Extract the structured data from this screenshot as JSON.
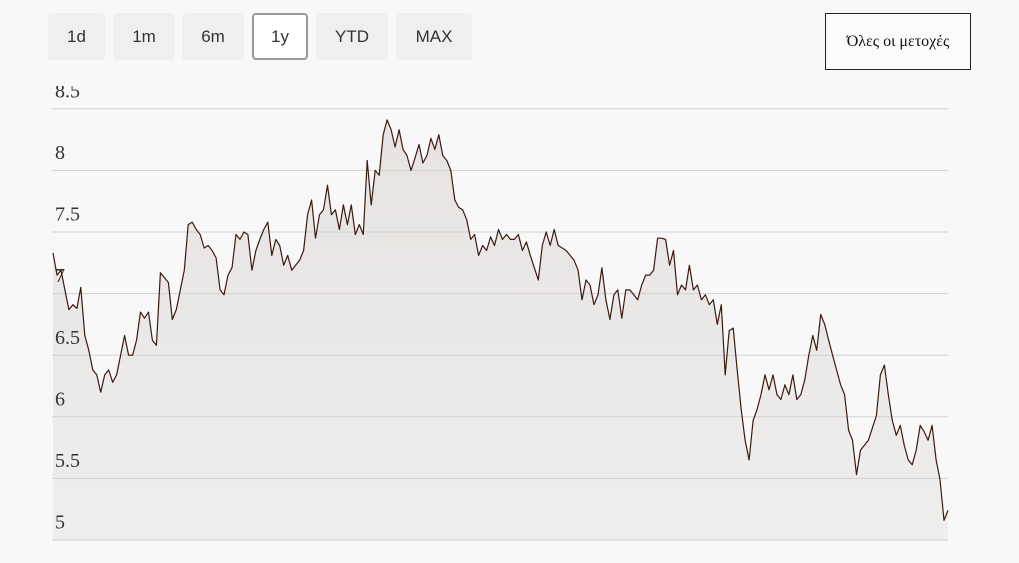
{
  "range_buttons": [
    "1d",
    "1m",
    "6m",
    "1y",
    "YTD",
    "MAX"
  ],
  "selected_range": 3,
  "all_stocks_button": "Όλες οι μετοχές",
  "chart_data": {
    "type": "line",
    "color": "#3b1a0f",
    "grid": true,
    "ylim": [
      5,
      8.685
    ],
    "yticks": [
      5,
      5.5,
      6,
      6.5,
      7,
      7.5,
      8,
      8.5
    ],
    "values": [
      7.33,
      7.15,
      7.19,
      7.03,
      6.87,
      6.91,
      6.88,
      7.05,
      6.66,
      6.54,
      6.38,
      6.34,
      6.2,
      6.34,
      6.38,
      6.28,
      6.34,
      6.5,
      6.66,
      6.5,
      6.5,
      6.62,
      6.85,
      6.8,
      6.85,
      6.62,
      6.58,
      7.17,
      7.13,
      7.09,
      6.79,
      6.87,
      7.03,
      7.19,
      7.56,
      7.58,
      7.52,
      7.48,
      7.37,
      7.39,
      7.35,
      7.29,
      7.03,
      6.99,
      7.15,
      7.21,
      7.48,
      7.44,
      7.5,
      7.48,
      7.19,
      7.35,
      7.44,
      7.52,
      7.58,
      7.31,
      7.44,
      7.39,
      7.23,
      7.31,
      7.19,
      7.23,
      7.27,
      7.35,
      7.64,
      7.76,
      7.45,
      7.64,
      7.68,
      7.88,
      7.64,
      7.68,
      7.52,
      7.72,
      7.56,
      7.72,
      7.48,
      7.56,
      7.48,
      8.08,
      7.72,
      8.0,
      7.96,
      8.29,
      8.41,
      8.33,
      8.19,
      8.33,
      8.17,
      8.12,
      8.0,
      8.1,
      8.21,
      8.06,
      8.12,
      8.26,
      8.17,
      8.29,
      8.12,
      8.08,
      8.0,
      7.76,
      7.7,
      7.68,
      7.6,
      7.44,
      7.48,
      7.31,
      7.39,
      7.35,
      7.46,
      7.39,
      7.52,
      7.44,
      7.48,
      7.44,
      7.44,
      7.48,
      7.35,
      7.42,
      7.31,
      7.21,
      7.11,
      7.39,
      7.5,
      7.39,
      7.52,
      7.39,
      7.37,
      7.35,
      7.31,
      7.27,
      7.19,
      6.95,
      7.11,
      7.07,
      6.91,
      6.99,
      7.21,
      6.95,
      6.79,
      6.99,
      7.03,
      6.8,
      7.03,
      7.03,
      6.99,
      6.95,
      7.07,
      7.15,
      7.15,
      7.19,
      7.45,
      7.45,
      7.44,
      7.23,
      7.35,
      6.99,
      7.07,
      7.03,
      7.23,
      7.03,
      7.07,
      6.95,
      6.99,
      6.91,
      6.95,
      6.75,
      6.91,
      6.34,
      6.7,
      6.72,
      6.38,
      6.06,
      5.81,
      5.65,
      5.97,
      6.06,
      6.18,
      6.34,
      6.22,
      6.34,
      6.18,
      6.14,
      6.26,
      6.18,
      6.34,
      6.14,
      6.18,
      6.3,
      6.5,
      6.66,
      6.54,
      6.83,
      6.75,
      6.62,
      6.5,
      6.38,
      6.26,
      6.18,
      5.89,
      5.81,
      5.53,
      5.73,
      5.77,
      5.81,
      5.91,
      6.01,
      6.34,
      6.42,
      6.18,
      5.97,
      5.85,
      5.93,
      5.77,
      5.65,
      5.61,
      5.73,
      5.93,
      5.88,
      5.81,
      5.93,
      5.65,
      5.49,
      5.16,
      5.24
    ]
  }
}
